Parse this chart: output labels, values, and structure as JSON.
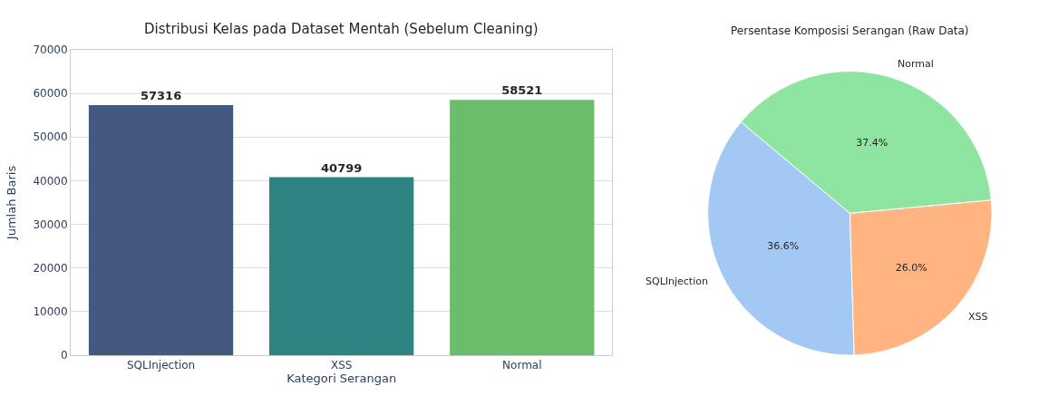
{
  "chart_data": [
    {
      "type": "bar",
      "title": "Distribusi Kelas pada Dataset Mentah (Sebelum Cleaning)",
      "xlabel": "Kategori Serangan",
      "ylabel": "Jumlah Baris",
      "categories": [
        "SQLInjection",
        "XSS",
        "Normal"
      ],
      "values": [
        57316,
        40799,
        58521
      ],
      "colors": [
        "#45587f",
        "#2e8480",
        "#6bbd6b"
      ],
      "ylim": [
        0,
        70000
      ],
      "yticks": [
        0,
        10000,
        20000,
        30000,
        40000,
        50000,
        60000,
        70000
      ],
      "grid": "y",
      "data_labels": true
    },
    {
      "type": "pie",
      "title": "Persentase Komposisi Serangan (Raw Data)",
      "categories": [
        "SQLInjection",
        "XSS",
        "Normal"
      ],
      "values": [
        36.6,
        26.0,
        37.4
      ],
      "colors": [
        "#a1c9f4",
        "#ffb482",
        "#8de5a1"
      ],
      "value_labels": [
        "36.6%",
        "26.0%",
        "37.4%"
      ]
    }
  ]
}
